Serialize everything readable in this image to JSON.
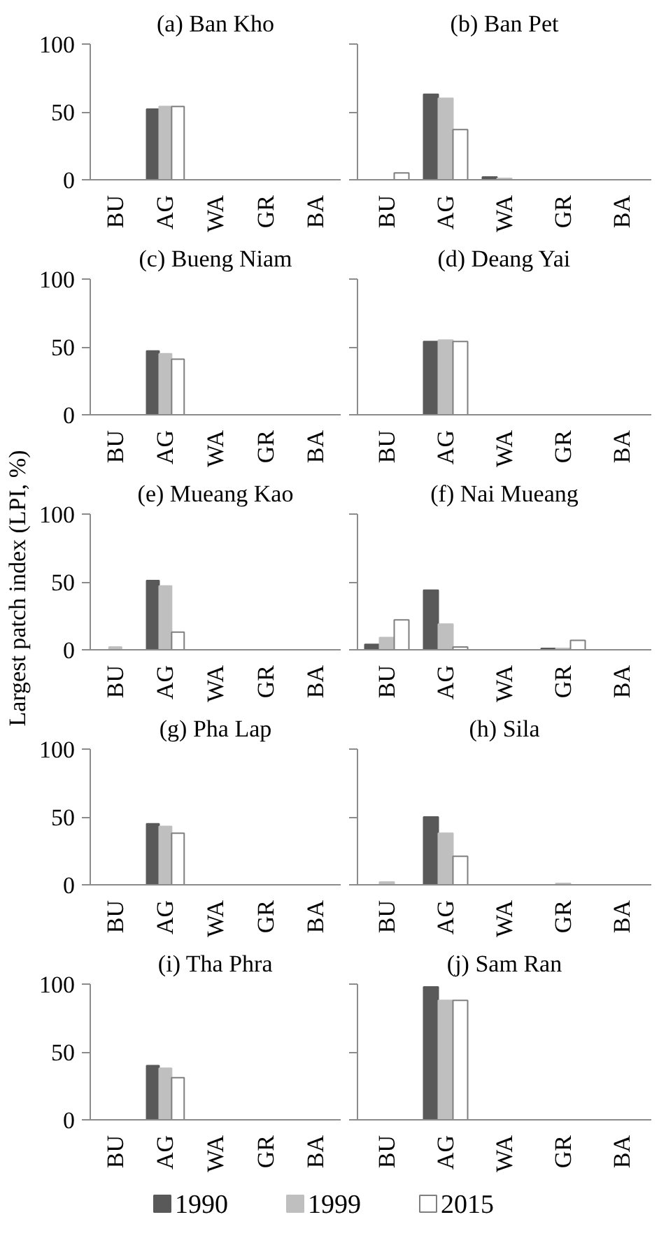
{
  "chart_data": [
    {
      "type": "bar",
      "title": "(a) Ban Kho",
      "categories": [
        "BU",
        "AG",
        "WA",
        "GR",
        "BA"
      ],
      "ylim": [
        0,
        100
      ],
      "yticks": [
        0,
        50,
        100
      ],
      "grid": false,
      "legend": "bottom",
      "series": [
        {
          "name": "1990",
          "color": "#595959",
          "values": [
            0,
            52,
            0,
            0,
            0
          ]
        },
        {
          "name": "1999",
          "color": "#bfbfbf",
          "values": [
            0,
            54,
            0,
            0,
            0
          ]
        },
        {
          "name": "2015",
          "color": "#ffffff",
          "values": [
            0,
            54,
            0,
            0,
            0
          ]
        }
      ]
    },
    {
      "type": "bar",
      "title": "(b) Ban Pet",
      "categories": [
        "BU",
        "AG",
        "WA",
        "GR",
        "BA"
      ],
      "ylim": [
        0,
        100
      ],
      "yticks": [
        0,
        50,
        100
      ],
      "grid": false,
      "tick_labels": "x",
      "series": [
        {
          "color": "#595959",
          "values": [
            0,
            63,
            2,
            0,
            0
          ]
        },
        {
          "color": "#bfbfbf",
          "values": [
            0,
            60,
            1,
            0,
            0
          ]
        },
        {
          "color": "#ffffff",
          "values": [
            5,
            37,
            0,
            0,
            0
          ]
        }
      ]
    },
    {
      "type": "bar",
      "title": "(c) Bueng Niam",
      "categories": [
        "BU",
        "AG",
        "WA",
        "GR",
        "BA"
      ],
      "ylim": [
        0,
        100
      ],
      "yticks": [
        0,
        50,
        100
      ],
      "grid": false,
      "series": [
        {
          "color": "#595959",
          "values": [
            0,
            47,
            0,
            0,
            0
          ]
        },
        {
          "color": "#bfbfbf",
          "values": [
            0,
            45,
            0,
            0,
            0
          ]
        },
        {
          "color": "#ffffff",
          "values": [
            0,
            41,
            0,
            0,
            0
          ]
        }
      ]
    },
    {
      "type": "bar",
      "title": "(d) Deang Yai",
      "categories": [
        "BU",
        "AG",
        "WA",
        "GR",
        "BA"
      ],
      "ylim": [
        0,
        100
      ],
      "yticks": [
        0,
        50,
        100
      ],
      "grid": false,
      "tick_labels": "x",
      "series": [
        {
          "color": "#595959",
          "values": [
            0,
            54,
            0,
            0,
            0
          ]
        },
        {
          "color": "#bfbfbf",
          "values": [
            0,
            55,
            0,
            0,
            0
          ]
        },
        {
          "color": "#ffffff",
          "values": [
            0,
            54,
            0,
            0,
            0
          ]
        }
      ]
    },
    {
      "type": "bar",
      "title": "(e) Mueang Kao",
      "ylabel": "Largest patch index (LPI, %)",
      "categories": [
        "BU",
        "AG",
        "WA",
        "GR",
        "BA"
      ],
      "ylim": [
        0,
        100
      ],
      "yticks": [
        0,
        50,
        100
      ],
      "grid": false,
      "series": [
        {
          "color": "#595959",
          "values": [
            0,
            51,
            0,
            0,
            0
          ]
        },
        {
          "color": "#bfbfbf",
          "values": [
            2,
            47,
            0,
            0,
            0
          ]
        },
        {
          "color": "#ffffff",
          "values": [
            0,
            13,
            0,
            0,
            0
          ]
        }
      ]
    },
    {
      "type": "bar",
      "title": "(f) Nai Mueang",
      "categories": [
        "BU",
        "AG",
        "WA",
        "GR",
        "BA"
      ],
      "ylim": [
        0,
        100
      ],
      "yticks": [
        0,
        50,
        100
      ],
      "grid": false,
      "tick_labels": "x",
      "series": [
        {
          "color": "#595959",
          "values": [
            4,
            44,
            0,
            1,
            0
          ]
        },
        {
          "color": "#bfbfbf",
          "values": [
            9,
            19,
            0,
            1,
            0
          ]
        },
        {
          "color": "#ffffff",
          "values": [
            22,
            2,
            0,
            7,
            0
          ]
        }
      ]
    },
    {
      "type": "bar",
      "title": "(g) Pha Lap",
      "categories": [
        "BU",
        "AG",
        "WA",
        "GR",
        "BA"
      ],
      "ylim": [
        0,
        100
      ],
      "yticks": [
        0,
        50,
        100
      ],
      "grid": false,
      "series": [
        {
          "color": "#595959",
          "values": [
            0,
            45,
            0,
            0,
            0
          ]
        },
        {
          "color": "#bfbfbf",
          "values": [
            0,
            43,
            0,
            0,
            0
          ]
        },
        {
          "color": "#ffffff",
          "values": [
            0,
            38,
            0,
            0,
            0
          ]
        }
      ]
    },
    {
      "type": "bar",
      "title": "(h) Sila",
      "categories": [
        "BU",
        "AG",
        "WA",
        "GR",
        "BA"
      ],
      "ylim": [
        0,
        100
      ],
      "yticks": [
        0,
        50,
        100
      ],
      "grid": false,
      "tick_labels": "x",
      "series": [
        {
          "color": "#595959",
          "values": [
            0,
            50,
            0,
            0,
            0
          ]
        },
        {
          "color": "#bfbfbf",
          "values": [
            2,
            38,
            0,
            1,
            0
          ]
        },
        {
          "color": "#ffffff",
          "values": [
            0,
            21,
            0,
            0,
            0
          ]
        }
      ]
    },
    {
      "type": "bar",
      "title": "(i) Tha Phra",
      "categories": [
        "BU",
        "AG",
        "WA",
        "GR",
        "BA"
      ],
      "ylim": [
        0,
        100
      ],
      "yticks": [
        0,
        50,
        100
      ],
      "grid": false,
      "series": [
        {
          "color": "#595959",
          "values": [
            0,
            40,
            0,
            0,
            0
          ]
        },
        {
          "color": "#bfbfbf",
          "values": [
            0,
            38,
            0,
            0,
            0
          ]
        },
        {
          "color": "#ffffff",
          "values": [
            0,
            31,
            0,
            0,
            0
          ]
        }
      ]
    },
    {
      "type": "bar",
      "title": "(j) Sam Ran",
      "categories": [
        "BU",
        "AG",
        "WA",
        "GR",
        "BA"
      ],
      "ylim": [
        0,
        100
      ],
      "yticks": [
        0,
        50,
        100
      ],
      "grid": false,
      "tick_labels": "x",
      "series": [
        {
          "color": "#595959",
          "values": [
            0,
            98,
            0,
            0,
            0
          ]
        },
        {
          "color": "#bfbfbf",
          "values": [
            0,
            88,
            0,
            0,
            0
          ]
        },
        {
          "color": "#ffffff",
          "values": [
            0,
            88,
            0,
            0,
            0
          ]
        }
      ]
    }
  ]
}
